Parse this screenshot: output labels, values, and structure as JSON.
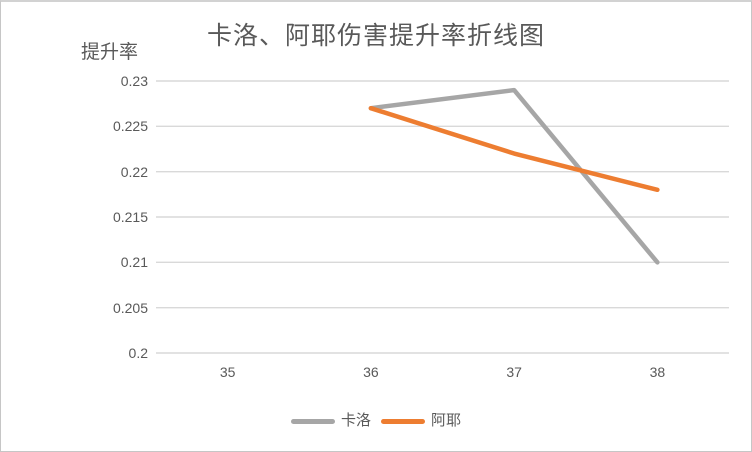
{
  "window": {
    "background": "#ffffff",
    "border_color": "#c6c6c6"
  },
  "chart_data": {
    "type": "line",
    "title": "卡洛、阿耶伤害提升率折线图",
    "xlabel": "",
    "ylabel": "提升率",
    "categories": [
      "35",
      "36",
      "37",
      "38"
    ],
    "series": [
      {
        "name": "卡洛",
        "color": "#A6A6A6",
        "values": [
          null,
          0.227,
          0.229,
          0.21
        ]
      },
      {
        "name": "阿耶",
        "color": "#ED7D31",
        "values": [
          null,
          0.227,
          0.222,
          0.218
        ]
      }
    ],
    "ylim": [
      0.2,
      0.23
    ],
    "yticks": [
      0.2,
      0.205,
      0.21,
      0.215,
      0.22,
      0.225,
      0.23
    ],
    "ytick_labels": [
      "0.2",
      "0.205",
      "0.21",
      "0.215",
      "0.22",
      "0.225",
      "0.23"
    ],
    "grid": "horizontal-only",
    "gridline_color": "#D9D9D9",
    "axis_text_color": "#595959",
    "legend_position": "bottom",
    "line_width": 4.5
  }
}
